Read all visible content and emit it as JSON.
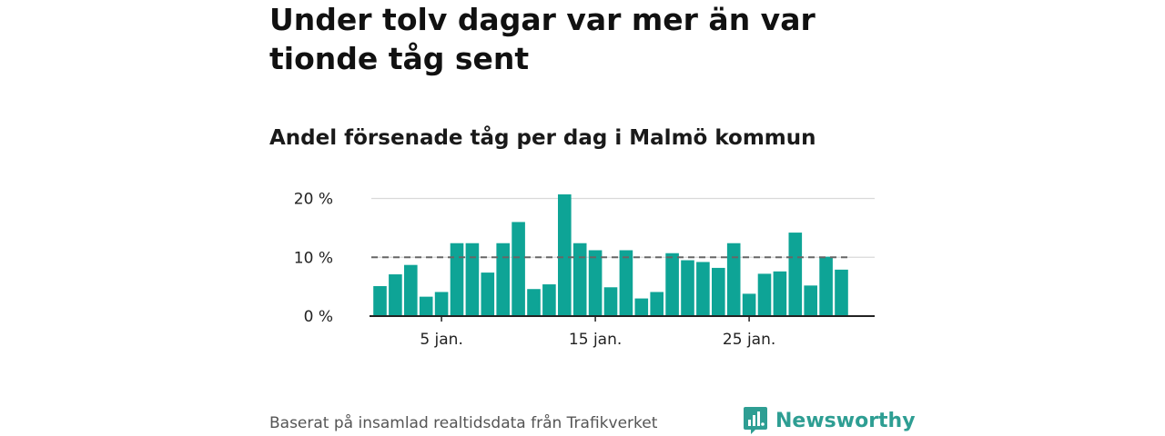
{
  "headline": "Under tolv dagar var mer än var tionde tåg sent",
  "subtitle": "Andel försenade tåg per dag i Malmö kommun",
  "footer": {
    "source": "Baserat på insamlad realtidsdata från Trafikverket"
  },
  "brand": {
    "name": "Newsworthy",
    "icon": "newsworthy-logo-icon"
  },
  "colors": {
    "bar": "#0ea496",
    "grid": "#d9d9d9",
    "axis": "#222222",
    "reference": "#666666",
    "brand": "#2e9e93"
  },
  "chart_data": {
    "type": "bar",
    "x": [
      1,
      2,
      3,
      4,
      5,
      6,
      7,
      8,
      9,
      10,
      11,
      12,
      13,
      14,
      15,
      16,
      17,
      18,
      19,
      20,
      21,
      22,
      23,
      24,
      25,
      26,
      27,
      28,
      29,
      30,
      31
    ],
    "values": [
      5.1,
      7.1,
      8.7,
      3.3,
      4.1,
      12.4,
      12.4,
      7.4,
      12.4,
      16.0,
      4.6,
      5.4,
      20.7,
      12.4,
      11.2,
      4.9,
      11.2,
      3.0,
      4.1,
      10.7,
      9.5,
      9.2,
      8.2,
      12.4,
      3.8,
      7.2,
      7.6,
      14.2,
      5.2,
      10.1,
      7.9
    ],
    "reference_line": 10,
    "ylim": [
      0,
      20.7
    ],
    "yticks": [
      0,
      10,
      20
    ],
    "ytick_labels": [
      "0 %",
      "10 %",
      "20 %"
    ],
    "xticks": [
      5,
      15,
      25
    ],
    "xtick_labels": [
      "5 jan.",
      "15 jan.",
      "25 jan."
    ],
    "grid": true
  }
}
